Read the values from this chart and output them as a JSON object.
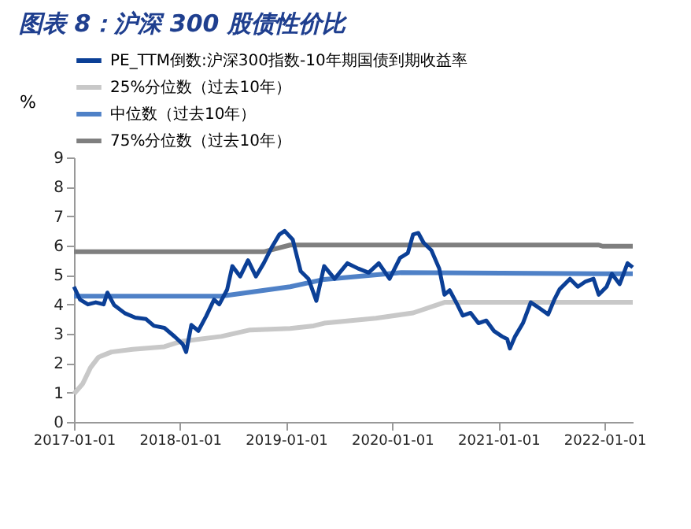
{
  "chart_data": {
    "type": "line",
    "title": "图表 8：沪深 300 股债性价比",
    "ylabel": "%",
    "xlim": [
      "2017-01-01",
      "2022-04-08"
    ],
    "xticks": [
      "2017-01-01",
      "2018-01-01",
      "2019-01-01",
      "2020-01-01",
      "2021-01-01",
      "2022-01-01"
    ],
    "ylim": [
      0,
      9
    ],
    "yticks": [
      0,
      1,
      2,
      3,
      4,
      5,
      6,
      7,
      8,
      9
    ],
    "grid": false,
    "legend": "top",
    "marker": "none",
    "line_style": "solid",
    "series": [
      {
        "name": "PE_TTM倒数:沪深300指数-10年期国债到期收益率",
        "color": "#0b3f96",
        "x": [
          "2017-01-01",
          "2017-01-22",
          "2017-02-18",
          "2017-03-17",
          "2017-04-13",
          "2017-04-26",
          "2017-05-19",
          "2017-06-25",
          "2017-07-31",
          "2017-09-06",
          "2017-10-03",
          "2017-11-08",
          "2017-12-14",
          "2018-01-10",
          "2018-01-22",
          "2018-02-09",
          "2018-03-05",
          "2018-04-01",
          "2018-04-28",
          "2018-05-16",
          "2018-06-12",
          "2018-06-30",
          "2018-07-27",
          "2018-08-23",
          "2018-09-19",
          "2018-10-16",
          "2018-11-12",
          "2018-12-09",
          "2018-12-27",
          "2019-01-24",
          "2019-02-20",
          "2019-03-19",
          "2019-04-15",
          "2019-05-12",
          "2019-06-17",
          "2019-07-31",
          "2019-09-06",
          "2019-10-12",
          "2019-11-16",
          "2019-12-23",
          "2020-01-28",
          "2020-02-24",
          "2020-03-13",
          "2020-03-31",
          "2020-04-18",
          "2020-05-15",
          "2020-06-11",
          "2020-06-29",
          "2020-07-17",
          "2020-08-13",
          "2020-08-31",
          "2020-09-27",
          "2020-10-24",
          "2020-11-20",
          "2020-12-17",
          "2021-01-13",
          "2021-01-31",
          "2021-02-09",
          "2021-02-27",
          "2021-03-26",
          "2021-04-22",
          "2021-05-19",
          "2021-06-21",
          "2021-07-12",
          "2021-07-30",
          "2021-09-04",
          "2021-10-01",
          "2021-10-28",
          "2021-11-24",
          "2021-12-12",
          "2022-01-08",
          "2022-01-26",
          "2022-02-22",
          "2022-03-21",
          "2022-04-08"
        ],
        "values": [
          4.6,
          4.16,
          4.0,
          4.07,
          4.0,
          4.4,
          3.98,
          3.7,
          3.55,
          3.5,
          3.27,
          3.2,
          2.9,
          2.65,
          2.38,
          3.3,
          3.1,
          3.6,
          4.16,
          4.0,
          4.5,
          5.3,
          4.95,
          5.5,
          4.95,
          5.4,
          5.93,
          6.38,
          6.5,
          6.2,
          5.13,
          4.87,
          4.12,
          5.3,
          4.87,
          5.4,
          5.22,
          5.08,
          5.4,
          4.87,
          5.58,
          5.75,
          6.38,
          6.43,
          6.1,
          5.84,
          5.22,
          4.33,
          4.48,
          3.98,
          3.62,
          3.71,
          3.36,
          3.45,
          3.09,
          2.91,
          2.82,
          2.5,
          2.91,
          3.36,
          4.07,
          3.89,
          3.66,
          4.16,
          4.51,
          4.87,
          4.6,
          4.78,
          4.87,
          4.33,
          4.6,
          5.04,
          4.69,
          5.4,
          5.26
        ]
      },
      {
        "name": "25%分位数（过去10年）",
        "color": "#c8c8c8",
        "x": [
          "2017-01-01",
          "2017-01-31",
          "2017-02-27",
          "2017-03-26",
          "2017-04-04",
          "2017-05-10",
          "2017-07-22",
          "2017-11-08",
          "2018-01-05",
          "2018-05-23",
          "2018-08-30",
          "2019-01-15",
          "2019-04-06",
          "2019-05-12",
          "2019-11-06",
          "2020-03-13",
          "2020-06-29",
          "2022-04-08"
        ],
        "values": [
          0.96,
          1.3,
          1.85,
          2.2,
          2.24,
          2.38,
          2.47,
          2.56,
          2.74,
          2.91,
          3.13,
          3.18,
          3.27,
          3.36,
          3.53,
          3.71,
          4.07,
          4.07
        ]
      },
      {
        "name": "中位数（过去10年）",
        "color": "#4f81c7",
        "x": [
          "2017-01-01",
          "2018-05-23",
          "2019-01-15",
          "2019-05-12",
          "2020-02-01",
          "2022-04-08"
        ],
        "values": [
          4.28,
          4.28,
          4.6,
          4.85,
          5.08,
          5.04
        ]
      },
      {
        "name": "75%分位数（过去10年）",
        "color": "#7f7f7f",
        "x": [
          "2017-01-01",
          "2018-10-16",
          "2019-01-15",
          "2021-12-12",
          "2021-12-25",
          "2022-04-08"
        ],
        "values": [
          5.79,
          5.79,
          6.02,
          6.02,
          5.98,
          5.98
        ]
      }
    ]
  }
}
